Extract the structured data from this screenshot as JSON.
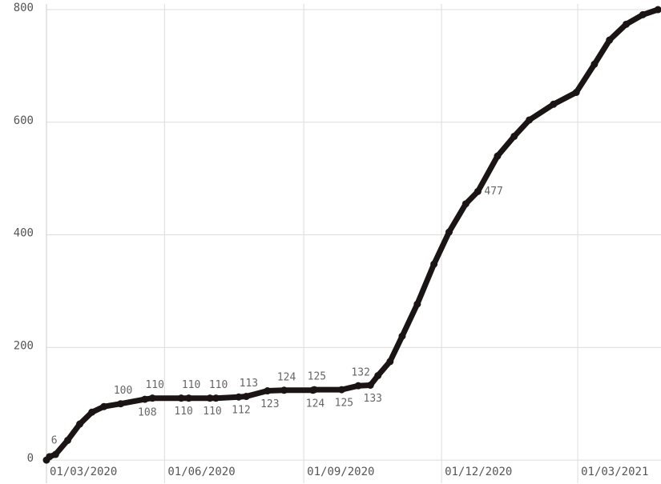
{
  "chart_data": {
    "type": "line",
    "x": [
      "2020-03-15",
      "2020-03-17",
      "2020-03-21",
      "2020-03-29",
      "2020-04-06",
      "2020-04-14",
      "2020-04-22",
      "2020-05-03",
      "2020-05-19",
      "2020-05-24",
      "2020-06-12",
      "2020-06-17",
      "2020-07-01",
      "2020-07-05",
      "2020-07-20",
      "2020-07-25",
      "2020-08-08",
      "2020-08-19",
      "2020-09-07",
      "2020-09-08",
      "2020-09-26",
      "2020-10-07",
      "2020-10-15",
      "2020-10-20",
      "2020-10-28",
      "2020-11-05",
      "2020-11-15",
      "2020-11-26",
      "2020-12-06",
      "2020-12-17",
      "2020-12-25",
      "2021-01-07",
      "2021-01-18",
      "2021-01-28",
      "2021-02-13",
      "2021-02-28",
      "2021-03-12",
      "2021-03-22",
      "2021-04-02",
      "2021-04-13",
      "2021-04-23"
    ],
    "series": [
      {
        "color": "#1a1414",
        "values": [
          0,
          6,
          10,
          35,
          64,
          85,
          95,
          100,
          108,
          110,
          110,
          110,
          110,
          110,
          112,
          113,
          123,
          124,
          124,
          125,
          125,
          132,
          133,
          150,
          175,
          220,
          277,
          348,
          405,
          455,
          477,
          540,
          575,
          604,
          632,
          653,
          703,
          746,
          774,
          791,
          800
        ],
        "value_labels": [
          null,
          "6",
          null,
          null,
          null,
          null,
          null,
          "100",
          "108",
          "110",
          "110",
          "110",
          "110",
          "110",
          "112",
          "113",
          "123",
          "124",
          "124",
          "125",
          "125",
          "132",
          "133",
          null,
          null,
          null,
          null,
          null,
          null,
          null,
          "477",
          null,
          null,
          null,
          null,
          null,
          null,
          null,
          null,
          null,
          null
        ]
      }
    ],
    "xlim": [
      "2020-03-15",
      "2021-04-25"
    ],
    "xticks": [
      {
        "value": "2020-03-01",
        "label": "01/03/2020"
      },
      {
        "value": "2020-06-01",
        "label": "01/06/2020"
      },
      {
        "value": "2020-09-01",
        "label": "01/09/2020"
      },
      {
        "value": "2020-12-01",
        "label": "01/12/2020"
      },
      {
        "value": "2021-03-01",
        "label": "01/03/2021"
      }
    ],
    "ylim": [
      -7,
      810
    ],
    "yticks": [
      0,
      200,
      400,
      600,
      800
    ],
    "grid": true
  }
}
